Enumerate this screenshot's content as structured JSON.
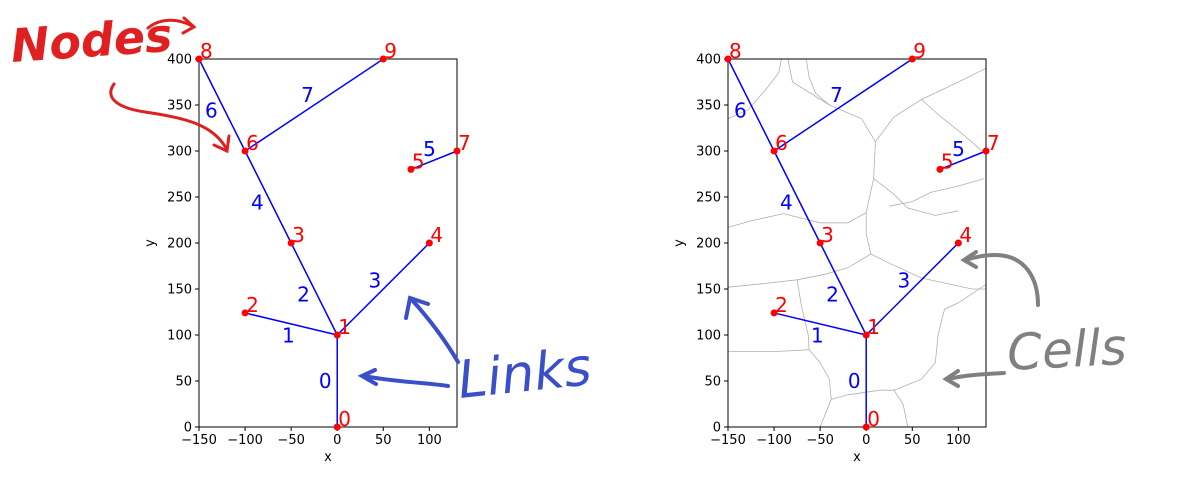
{
  "chart_data": [
    {
      "type": "network",
      "xlabel": "x",
      "ylabel": "y",
      "xlim": [
        -150,
        130
      ],
      "ylim": [
        0,
        400
      ],
      "xticks": [
        -150,
        -100,
        -50,
        0,
        50,
        100
      ],
      "yticks": [
        0,
        50,
        100,
        150,
        200,
        250,
        300,
        350,
        400
      ],
      "show_cells": false,
      "nodes": [
        {
          "id": "0",
          "x": 0,
          "y": 0
        },
        {
          "id": "1",
          "x": 0,
          "y": 100
        },
        {
          "id": "2",
          "x": -100,
          "y": 124
        },
        {
          "id": "3",
          "x": -50,
          "y": 200
        },
        {
          "id": "4",
          "x": 100,
          "y": 200
        },
        {
          "id": "5",
          "x": 80,
          "y": 280
        },
        {
          "id": "6",
          "x": -100,
          "y": 300
        },
        {
          "id": "7",
          "x": 130,
          "y": 300
        },
        {
          "id": "8",
          "x": -150,
          "y": 400
        },
        {
          "id": "9",
          "x": 50,
          "y": 400
        }
      ],
      "links": [
        {
          "id": "0",
          "from": 0,
          "to": 1
        },
        {
          "id": "1",
          "from": 1,
          "to": 2
        },
        {
          "id": "2",
          "from": 1,
          "to": 3
        },
        {
          "id": "3",
          "from": 1,
          "to": 4
        },
        {
          "id": "4",
          "from": 3,
          "to": 6
        },
        {
          "id": "5",
          "from": 5,
          "to": 7
        },
        {
          "id": "6",
          "from": 6,
          "to": 8
        },
        {
          "id": "7",
          "from": 6,
          "to": 9
        }
      ]
    },
    {
      "type": "network",
      "xlabel": "x",
      "ylabel": "y",
      "xlim": [
        -150,
        130
      ],
      "ylim": [
        0,
        400
      ],
      "xticks": [
        -150,
        -100,
        -50,
        0,
        50,
        100
      ],
      "yticks": [
        0,
        50,
        100,
        150,
        200,
        250,
        300,
        350,
        400
      ],
      "show_cells": true,
      "nodes": [
        {
          "id": "0",
          "x": 0,
          "y": 0
        },
        {
          "id": "1",
          "x": 0,
          "y": 100
        },
        {
          "id": "2",
          "x": -100,
          "y": 124
        },
        {
          "id": "3",
          "x": -50,
          "y": 200
        },
        {
          "id": "4",
          "x": 100,
          "y": 200
        },
        {
          "id": "5",
          "x": 80,
          "y": 280
        },
        {
          "id": "6",
          "x": -100,
          "y": 300
        },
        {
          "id": "7",
          "x": 130,
          "y": 300
        },
        {
          "id": "8",
          "x": -150,
          "y": 400
        },
        {
          "id": "9",
          "x": 50,
          "y": 400
        }
      ],
      "links": [
        {
          "id": "0",
          "from": 0,
          "to": 1
        },
        {
          "id": "1",
          "from": 1,
          "to": 2
        },
        {
          "id": "2",
          "from": 1,
          "to": 3
        },
        {
          "id": "3",
          "from": 1,
          "to": 4
        },
        {
          "id": "4",
          "from": 3,
          "to": 6
        },
        {
          "id": "5",
          "from": 5,
          "to": 7
        },
        {
          "id": "6",
          "from": 6,
          "to": 8
        },
        {
          "id": "7",
          "from": 6,
          "to": 9
        }
      ],
      "cell_boundaries": [
        [
          [
            -150,
            335
          ],
          [
            -128,
            345
          ],
          [
            -108,
            368
          ],
          [
            -95,
            385
          ],
          [
            -92,
            400
          ]
        ],
        [
          [
            -65,
            400
          ],
          [
            -62,
            380
          ],
          [
            -55,
            363
          ],
          [
            -40,
            350
          ],
          [
            -5,
            335
          ],
          [
            10,
            310
          ],
          [
            8,
            270
          ],
          [
            0,
            233
          ],
          [
            -20,
            222
          ],
          [
            -50,
            222
          ],
          [
            -90,
            232
          ],
          [
            -125,
            224
          ],
          [
            -150,
            217
          ]
        ],
        [
          [
            10,
            310
          ],
          [
            30,
            337
          ],
          [
            60,
            356
          ],
          [
            100,
            375
          ],
          [
            130,
            390
          ]
        ],
        [
          [
            -40,
            350
          ],
          [
            -80,
            375
          ],
          [
            -85,
            400
          ]
        ],
        [
          [
            60,
            356
          ],
          [
            80,
            338
          ],
          [
            105,
            318
          ],
          [
            120,
            305
          ],
          [
            130,
            296
          ]
        ],
        [
          [
            8,
            270
          ],
          [
            30,
            253
          ],
          [
            45,
            238
          ],
          [
            75,
            230
          ],
          [
            100,
            235
          ]
        ],
        [
          [
            25,
            240
          ],
          [
            50,
            245
          ],
          [
            70,
            255
          ],
          [
            100,
            262
          ],
          [
            128,
            270
          ]
        ],
        [
          [
            0,
            233
          ],
          [
            0,
            210
          ],
          [
            5,
            188
          ],
          [
            25,
            178
          ],
          [
            60,
            162
          ],
          [
            115,
            150
          ],
          [
            130,
            150
          ]
        ],
        [
          [
            -150,
            152
          ],
          [
            -110,
            156
          ],
          [
            -75,
            160
          ],
          [
            -45,
            166
          ],
          [
            -20,
            173
          ],
          [
            5,
            188
          ]
        ],
        [
          [
            -75,
            160
          ],
          [
            -70,
            130
          ],
          [
            -63,
            100
          ],
          [
            -62,
            84
          ],
          [
            -100,
            82
          ],
          [
            -150,
            82
          ]
        ],
        [
          [
            -62,
            84
          ],
          [
            -50,
            70
          ],
          [
            -40,
            52
          ],
          [
            -38,
            30
          ],
          [
            -50,
            0
          ]
        ],
        [
          [
            -38,
            30
          ],
          [
            -20,
            35
          ],
          [
            15,
            40
          ],
          [
            30,
            40
          ],
          [
            40,
            25
          ],
          [
            45,
            0
          ]
        ],
        [
          [
            30,
            40
          ],
          [
            60,
            52
          ],
          [
            75,
            70
          ],
          [
            78,
            100
          ],
          [
            85,
            128
          ],
          [
            100,
            135
          ],
          [
            130,
            155
          ]
        ]
      ]
    }
  ],
  "annotations": {
    "nodes": {
      "text": "Nodes",
      "color": "#e02020"
    },
    "links": {
      "text": "Links",
      "color": "#3a4fc8"
    },
    "cells": {
      "text": "Cells",
      "color": "#808080"
    }
  },
  "colors": {
    "node": "#ff0000",
    "link": "#0000ff",
    "cell": "#b0b0b0",
    "axis": "#000000"
  }
}
